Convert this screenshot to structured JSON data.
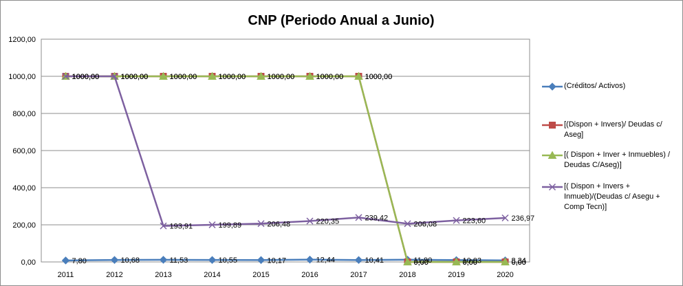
{
  "chart_data": {
    "type": "line",
    "title": "CNP (Periodo Anual a Junio)",
    "xlabel": "",
    "ylabel": "",
    "categories": [
      "2011",
      "2012",
      "2013",
      "2014",
      "2015",
      "2016",
      "2017",
      "2018",
      "2019",
      "2020"
    ],
    "ylim": [
      0,
      1200
    ],
    "y_ticks": [
      "0,00",
      "200,00",
      "400,00",
      "600,00",
      "800,00",
      "1000,00",
      "1200,00"
    ],
    "grid": "horizontal",
    "legend_position": "right",
    "series": [
      {
        "name": "(Créditos/ Activos)",
        "color": "#4a7ebb",
        "marker": "diamond",
        "values": [
          7.8,
          10.68,
          11.53,
          10.55,
          10.17,
          12.44,
          10.41,
          11.9,
          10.03,
          8.34
        ],
        "labels": [
          "7,80",
          "10,68",
          "11,53",
          "10,55",
          "10,17",
          "12,44",
          "10,41",
          "11,90",
          "10,03",
          "8,34"
        ]
      },
      {
        "name": "[(Dispon + Invers)/ Deudas c/ Aseg]",
        "color": "#be4b48",
        "marker": "square",
        "values": [
          1000,
          1000,
          1000,
          1000,
          1000,
          1000,
          1000,
          0,
          0,
          0
        ],
        "labels": [
          "1000,00",
          "1000,00",
          "1000,00",
          "1000,00",
          "1000,00",
          "1000,00",
          "1000,00",
          "0,00",
          "0,00",
          "0,00"
        ]
      },
      {
        "name": "[( Dispon + Inver + Inmuebles) / Deudas C/Aseg)]",
        "color": "#98b954",
        "marker": "triangle",
        "values": [
          1000,
          1000,
          1000,
          1000,
          1000,
          1000,
          1000,
          0,
          0,
          0
        ],
        "labels": [
          "1000,00",
          "1000,00",
          "1000,00",
          "1000,00",
          "1000,00",
          "1000,00",
          "1000,00",
          "0,00",
          "0,00",
          "0,00"
        ]
      },
      {
        "name": "[( Dispon + Invers + Inmueb)/(Deudas c/ Asegu + Comp Tecn)]",
        "color": "#7d60a0",
        "marker": "x",
        "values": [
          1000,
          1000,
          193.91,
          199.89,
          206.48,
          220.35,
          239.42,
          206.08,
          223.6,
          236.97
        ],
        "labels": [
          "1000,00",
          "1000,00",
          "193,91",
          "199,89",
          "206,48",
          "220,35",
          "239,42",
          "206,08",
          "223,60",
          "236,97"
        ]
      }
    ]
  }
}
